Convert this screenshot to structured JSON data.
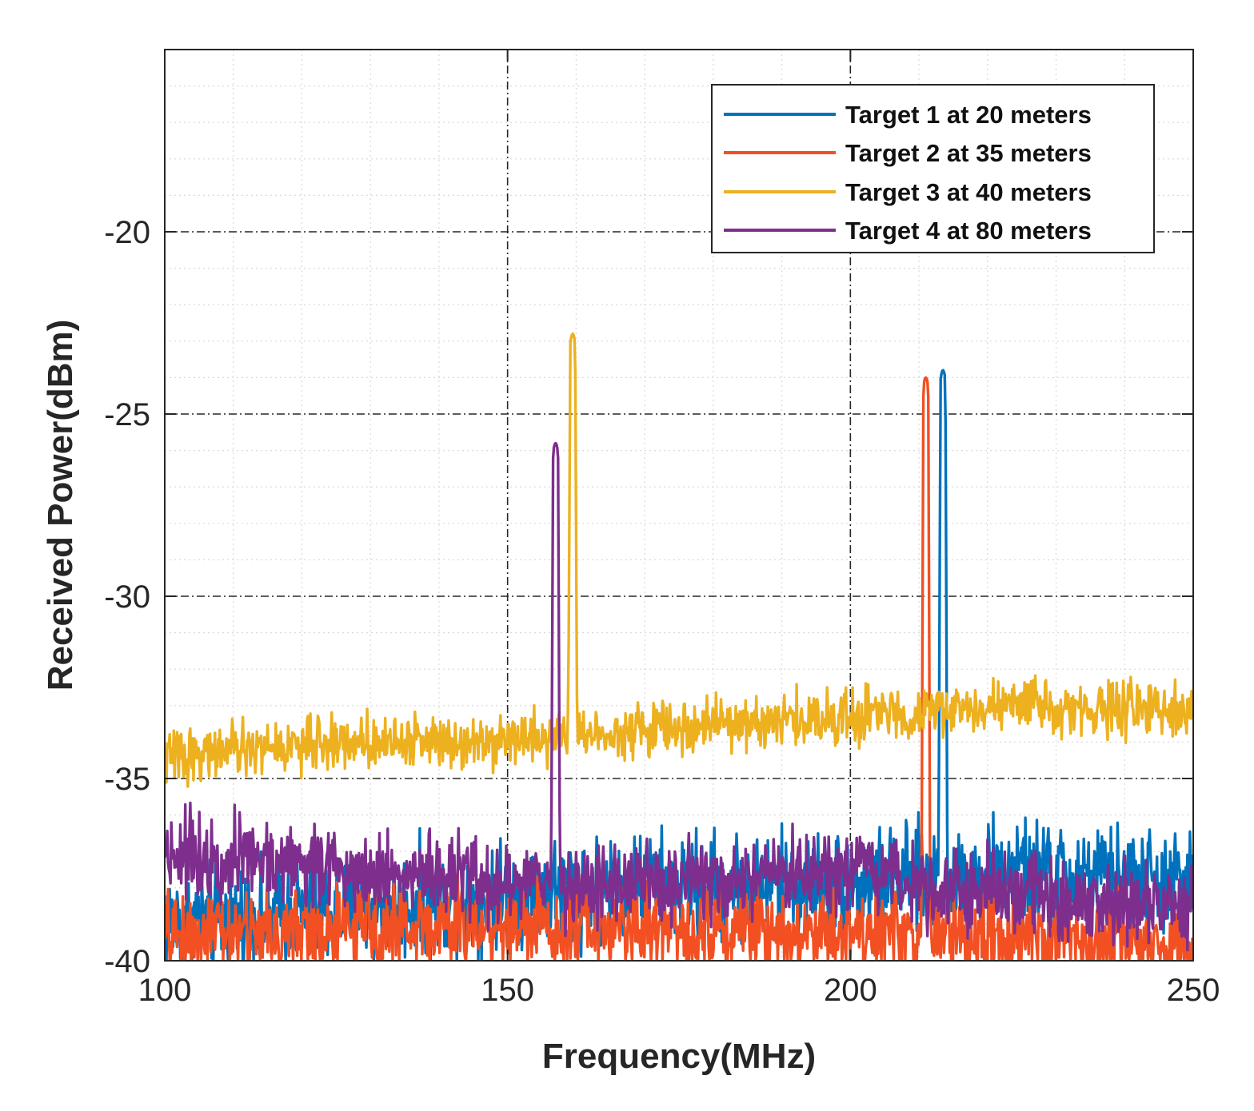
{
  "chart_data": {
    "type": "line",
    "title": "",
    "xlabel": "Frequency(MHz)",
    "ylabel": "Received Power(dBm)",
    "xlim": [
      100,
      250
    ],
    "ylim": [
      -40,
      -15
    ],
    "xticks": [
      100,
      150,
      200,
      250
    ],
    "xtick_labels": [
      "100",
      "150",
      "200",
      "250"
    ],
    "yticks": [
      -40,
      -35,
      -30,
      -25,
      -20
    ],
    "ytick_labels": [
      "-40",
      "-35",
      "-30",
      "-25",
      "-20"
    ],
    "grid": true,
    "legend_position": "top-right",
    "series": [
      {
        "name": "Target 1 at 20 meters",
        "color": "#0072BD",
        "noise_floor": [
          [
            100,
            -38.9
          ],
          [
            130,
            -38.6
          ],
          [
            160,
            -38.0
          ],
          [
            200,
            -37.9
          ],
          [
            225,
            -37.6
          ],
          [
            250,
            -37.9
          ]
        ],
        "peak": {
          "x": 213.5,
          "y": -23.8
        },
        "x": [
          100,
          150,
          200,
          212.8,
          213.5,
          214.2,
          250
        ],
        "values": [
          -38.9,
          -38.3,
          -37.9,
          -37.8,
          -23.8,
          -37.6,
          -37.9
        ]
      },
      {
        "name": "Target 2 at 35 meters",
        "color": "#F25022",
        "noise_floor": [
          [
            100,
            -39.3
          ],
          [
            150,
            -39.0
          ],
          [
            200,
            -39.2
          ],
          [
            250,
            -39.6
          ]
        ],
        "peak": {
          "x": 211.0,
          "y": -24.0
        },
        "x": [
          100,
          150,
          200,
          210.3,
          211.0,
          211.7,
          250
        ],
        "values": [
          -39.3,
          -39.0,
          -39.2,
          -39.4,
          -24.0,
          -38.0,
          -39.6
        ]
      },
      {
        "name": "Target 3 at 40 meters",
        "color": "#EDB120",
        "noise_floor": [
          [
            100,
            -34.4
          ],
          [
            125,
            -34.0
          ],
          [
            150,
            -33.9
          ],
          [
            175,
            -33.6
          ],
          [
            200,
            -33.3
          ],
          [
            225,
            -33.0
          ],
          [
            250,
            -33.2
          ]
        ],
        "peak": {
          "x": 159.5,
          "y": -22.8
        },
        "x": [
          100,
          150,
          158.8,
          159.5,
          160.4,
          200,
          250
        ],
        "values": [
          -34.4,
          -33.9,
          -33.7,
          -22.8,
          -33.2,
          -33.3,
          -33.2
        ]
      },
      {
        "name": "Target 4 at 80 meters",
        "color": "#7E2F8E",
        "noise_floor": [
          [
            100,
            -37.0
          ],
          [
            120,
            -37.3
          ],
          [
            150,
            -37.9
          ],
          [
            180,
            -37.9
          ],
          [
            200,
            -37.6
          ],
          [
            225,
            -38.2
          ],
          [
            250,
            -38.6
          ]
        ],
        "peak": {
          "x": 157.0,
          "y": -25.8
        },
        "x": [
          100,
          150,
          156.3,
          157.0,
          157.7,
          200,
          250
        ],
        "values": [
          -37.0,
          -37.9,
          -37.9,
          -25.8,
          -38.0,
          -37.6,
          -38.6
        ]
      }
    ]
  }
}
